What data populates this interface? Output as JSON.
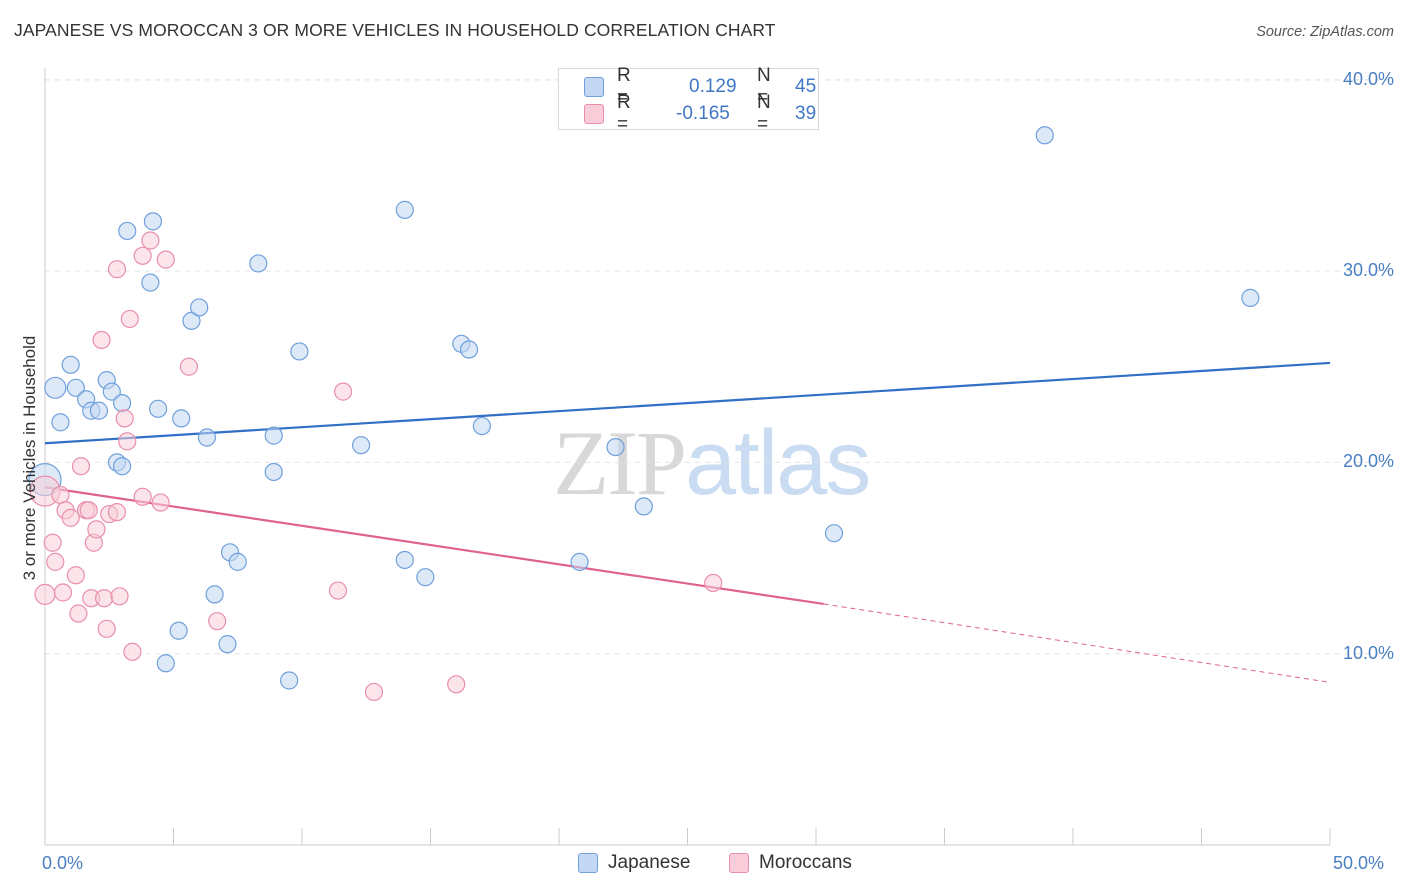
{
  "title": "JAPANESE VS MOROCCAN 3 OR MORE VEHICLES IN HOUSEHOLD CORRELATION CHART",
  "source": "Source: ZipAtlas.com",
  "watermark": {
    "zip": "ZIP",
    "atlas": "atlas"
  },
  "legend": {
    "rows": [
      {
        "r_label": "R =",
        "r_value": "0.129",
        "n_label": "N =",
        "n_value": "45",
        "color": "#aac8ef"
      },
      {
        "r_label": "R =",
        "r_value": "-0.165",
        "n_label": "N =",
        "n_value": "39",
        "color": "#f5b8cb"
      }
    ]
  },
  "bottom_legend": [
    {
      "label": "Japanese",
      "color": "#aac8ef"
    },
    {
      "label": "Moroccans",
      "color": "#f5b8cb"
    }
  ],
  "chart_data": {
    "type": "scatter",
    "title": "JAPANESE VS MOROCCAN 3 OR MORE VEHICLES IN HOUSEHOLD CORRELATION CHART",
    "xlabel": "",
    "ylabel": "3 or more Vehicles in Household",
    "xlim": [
      0,
      50
    ],
    "ylim": [
      0,
      43
    ],
    "x_tick_labels": [
      "0.0%",
      "50.0%"
    ],
    "y_ticks": [
      10,
      20,
      30,
      40
    ],
    "y_tick_labels": [
      "10.0%",
      "20.0%",
      "30.0%",
      "40.0%"
    ],
    "grid": true,
    "legend_position": "top-center",
    "series": [
      {
        "name": "Japanese",
        "color": "#6fa0dc",
        "fill": "#c3d7f2",
        "trend": {
          "x": [
            0,
            50
          ],
          "y": [
            21.0,
            25.2
          ],
          "color": "#2f6fc6"
        },
        "points": [
          [
            0.0,
            19.1
          ],
          [
            0.4,
            23.9
          ],
          [
            0.6,
            22.1
          ],
          [
            1.0,
            25.1
          ],
          [
            1.2,
            23.9
          ],
          [
            1.6,
            23.3
          ],
          [
            1.8,
            22.7
          ],
          [
            2.1,
            22.7
          ],
          [
            2.4,
            24.3
          ],
          [
            2.6,
            23.7
          ],
          [
            2.8,
            20.0
          ],
          [
            3.0,
            19.8
          ],
          [
            3.0,
            23.1
          ],
          [
            3.2,
            32.1
          ],
          [
            4.2,
            32.6
          ],
          [
            4.1,
            29.4
          ],
          [
            4.4,
            22.8
          ],
          [
            5.3,
            22.3
          ],
          [
            5.7,
            27.4
          ],
          [
            6.0,
            28.1
          ],
          [
            6.3,
            21.3
          ],
          [
            4.7,
            9.5
          ],
          [
            5.2,
            11.2
          ],
          [
            6.6,
            13.1
          ],
          [
            7.1,
            10.5
          ],
          [
            7.2,
            15.3
          ],
          [
            7.5,
            14.8
          ],
          [
            8.3,
            30.4
          ],
          [
            8.9,
            21.4
          ],
          [
            8.9,
            19.5
          ],
          [
            9.5,
            8.6
          ],
          [
            9.9,
            25.8
          ],
          [
            12.3,
            20.9
          ],
          [
            14.0,
            14.9
          ],
          [
            14.0,
            33.2
          ],
          [
            14.8,
            14.0
          ],
          [
            16.2,
            26.2
          ],
          [
            16.5,
            25.9
          ],
          [
            17.0,
            21.9
          ],
          [
            20.8,
            14.8
          ],
          [
            22.2,
            20.8
          ],
          [
            23.3,
            17.7
          ],
          [
            30.7,
            16.3
          ],
          [
            38.9,
            37.1
          ],
          [
            46.9,
            28.6
          ]
        ]
      },
      {
        "name": "Moroccans",
        "color": "#e98fab",
        "fill": "#f8cdd9",
        "trend": {
          "x": [
            0,
            30.3
          ],
          "y": [
            18.7,
            12.6
          ],
          "color": "#e0628e",
          "dashed_to": [
            50,
            8.5
          ]
        },
        "points": [
          [
            0.0,
            18.5
          ],
          [
            0.0,
            13.1
          ],
          [
            0.3,
            15.8
          ],
          [
            0.4,
            14.8
          ],
          [
            0.6,
            18.3
          ],
          [
            0.7,
            13.2
          ],
          [
            0.8,
            17.5
          ],
          [
            1.0,
            17.1
          ],
          [
            1.2,
            14.1
          ],
          [
            1.3,
            12.1
          ],
          [
            1.4,
            19.8
          ],
          [
            1.6,
            17.5
          ],
          [
            1.7,
            17.5
          ],
          [
            1.8,
            12.9
          ],
          [
            1.9,
            15.8
          ],
          [
            2.0,
            16.5
          ],
          [
            2.2,
            26.4
          ],
          [
            2.3,
            12.9
          ],
          [
            2.4,
            11.3
          ],
          [
            2.5,
            17.3
          ],
          [
            2.8,
            17.4
          ],
          [
            2.8,
            30.1
          ],
          [
            2.9,
            13.0
          ],
          [
            3.1,
            22.3
          ],
          [
            3.2,
            21.1
          ],
          [
            3.3,
            27.5
          ],
          [
            3.4,
            10.1
          ],
          [
            3.8,
            18.2
          ],
          [
            3.8,
            30.8
          ],
          [
            4.1,
            31.6
          ],
          [
            4.5,
            17.9
          ],
          [
            4.7,
            30.6
          ],
          [
            5.6,
            25.0
          ],
          [
            6.7,
            11.7
          ],
          [
            11.4,
            13.3
          ],
          [
            11.6,
            23.7
          ],
          [
            12.8,
            8.0
          ],
          [
            16.0,
            8.4
          ],
          [
            26.0,
            13.7
          ]
        ]
      }
    ]
  }
}
